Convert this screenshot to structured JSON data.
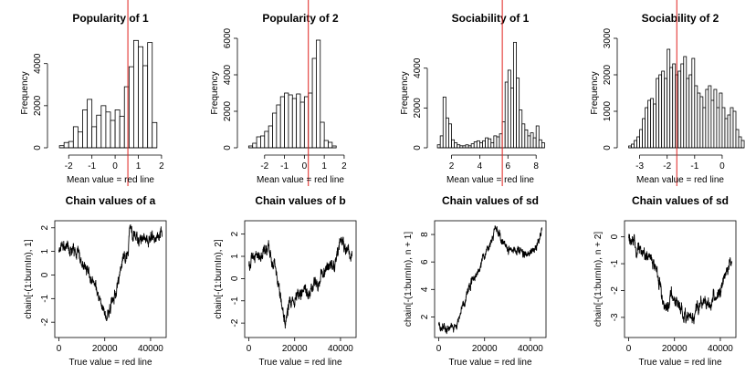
{
  "colors": {
    "reference_line": "#e0221e",
    "ink": "#000000",
    "bar_fill": "#ffffff"
  },
  "chart_data": [
    {
      "type": "histogram",
      "title": "Popularity of 1",
      "xlabel": "Mean value = red line",
      "ylabel": "Frequency",
      "bin_width": 0.2,
      "bin_start": -2.4,
      "counts": [
        100,
        250,
        300,
        1000,
        750,
        1800,
        2300,
        1000,
        1550,
        2000,
        1700,
        1300,
        1800,
        1500,
        2900,
        3850,
        5100,
        4800,
        3900,
        5000,
        1200
      ],
      "xlim": [
        -2.6,
        2.2
      ],
      "ylim": [
        0,
        5200
      ],
      "xticks": [
        -2,
        -1,
        0,
        1,
        2
      ],
      "yticks": [
        0,
        2000,
        4000
      ],
      "reference_line": 0.55
    },
    {
      "type": "histogram",
      "title": "Popularity of 2",
      "xlabel": "Mean value = red line",
      "ylabel": "Frequency",
      "bin_width": 0.2,
      "bin_start": -2.8,
      "counts": [
        100,
        250,
        600,
        650,
        900,
        1200,
        1900,
        2350,
        2800,
        3000,
        2900,
        2700,
        2950,
        2500,
        2800,
        3000,
        4900,
        5900,
        1400,
        400,
        300,
        100
      ],
      "xlim": [
        -3.0,
        2.6
      ],
      "ylim": [
        0,
        6000
      ],
      "xticks": [
        -2,
        -1,
        0,
        1,
        2
      ],
      "yticks": [
        0,
        2000,
        4000,
        6000
      ],
      "reference_line": 0.2
    },
    {
      "type": "histogram",
      "title": "Sociability of 1",
      "xlabel": "Mean value = red line",
      "ylabel": "Frequency",
      "bin_width": 0.2,
      "bin_start": 1.0,
      "counts": [
        150,
        600,
        2550,
        1500,
        1200,
        400,
        250,
        150,
        100,
        100,
        150,
        100,
        200,
        300,
        350,
        250,
        350,
        500,
        450,
        250,
        600,
        550,
        700,
        1300,
        3300,
        3900,
        3000,
        5300,
        3500,
        1900,
        1200,
        900,
        600,
        750,
        500,
        1100,
        400,
        250
      ],
      "xlim": [
        0.8,
        8.7
      ],
      "ylim": [
        0,
        5500
      ],
      "xticks": [
        2,
        4,
        6,
        8
      ],
      "yticks": [
        0,
        2000,
        4000
      ],
      "reference_line": 5.6
    },
    {
      "type": "histogram",
      "title": "Sociability of 2",
      "xlabel": "Mean value = red line",
      "ylabel": "Frequency",
      "bin_width": 0.1,
      "bin_start": -3.4,
      "counts": [
        50,
        100,
        200,
        300,
        500,
        800,
        1100,
        1300,
        1350,
        1200,
        1900,
        2000,
        2100,
        1900,
        2700,
        2200,
        2300,
        2000,
        2100,
        2300,
        2500,
        1900,
        2000,
        2450,
        1700,
        1500,
        1400,
        1100,
        1600,
        1700,
        1300,
        1600,
        1100,
        1500,
        1100,
        800,
        900,
        1100,
        1000,
        500,
        300,
        200
      ],
      "xlim": [
        -3.55,
        0.5
      ],
      "ylim": [
        0,
        3000
      ],
      "xticks": [
        -3,
        -2,
        -1,
        0
      ],
      "yticks": [
        0,
        1000,
        2000,
        3000
      ],
      "reference_line": -1.65
    },
    {
      "type": "line",
      "title": "Chain values of a",
      "xlabel": "True value = red line",
      "ylabel": "chain[-(1:burnIn), 1]",
      "x_range": [
        0,
        45000
      ],
      "xlim": [
        -1800,
        46800
      ],
      "ylim": [
        -2.65,
        2.3
      ],
      "xticks": [
        0,
        20000,
        40000
      ],
      "yticks": [
        -2,
        -1,
        0,
        1,
        2
      ],
      "anchors": [
        [
          0,
          1.1
        ],
        [
          3000,
          1.2
        ],
        [
          5000,
          1.0
        ],
        [
          8000,
          1.0
        ],
        [
          10000,
          0.5
        ],
        [
          13000,
          0.2
        ],
        [
          15000,
          -0.3
        ],
        [
          17000,
          -0.9
        ],
        [
          19000,
          -1.5
        ],
        [
          21000,
          -1.9
        ],
        [
          22500,
          -1.3
        ],
        [
          24000,
          -0.9
        ],
        [
          26000,
          -0.3
        ],
        [
          28000,
          0.6
        ],
        [
          30000,
          1.0
        ],
        [
          31000,
          1.9
        ],
        [
          34000,
          1.6
        ],
        [
          38000,
          1.5
        ],
        [
          42000,
          1.6
        ],
        [
          45000,
          1.8
        ]
      ],
      "noise": 0.22
    },
    {
      "type": "line",
      "title": "Chain values of b",
      "xlabel": "True value = red line",
      "ylabel": "chain[-(1:burnIn), 2]",
      "x_range": [
        0,
        45000
      ],
      "xlim": [
        -1800,
        46800
      ],
      "ylim": [
        -2.65,
        2.6
      ],
      "xticks": [
        0,
        20000,
        40000
      ],
      "yticks": [
        -2,
        -1,
        0,
        1,
        2
      ],
      "anchors": [
        [
          0,
          0.6
        ],
        [
          3000,
          1.0
        ],
        [
          6000,
          1.1
        ],
        [
          9000,
          1.2
        ],
        [
          11000,
          0.6
        ],
        [
          13000,
          -0.3
        ],
        [
          14500,
          -1.2
        ],
        [
          16000,
          -1.9
        ],
        [
          18000,
          -1.0
        ],
        [
          20000,
          -0.9
        ],
        [
          22000,
          -0.4
        ],
        [
          25000,
          -0.8
        ],
        [
          27000,
          -0.5
        ],
        [
          30000,
          -0.2
        ],
        [
          32000,
          0.3
        ],
        [
          35000,
          0.5
        ],
        [
          38000,
          0.9
        ],
        [
          40000,
          1.8
        ],
        [
          42000,
          1.3
        ],
        [
          45000,
          1.2
        ]
      ],
      "noise": 0.25
    },
    {
      "type": "line",
      "title": "Chain values of sd",
      "xlabel": "True value = red line",
      "ylabel": "chain[-(1:burnIn), n + 1]",
      "x_range": [
        0,
        45000
      ],
      "xlim": [
        -1800,
        46800
      ],
      "ylim": [
        0.5,
        9.0
      ],
      "xticks": [
        0,
        20000,
        40000
      ],
      "yticks": [
        2,
        4,
        6,
        8
      ],
      "anchors": [
        [
          0,
          1.3
        ],
        [
          4000,
          1.1
        ],
        [
          8000,
          1.4
        ],
        [
          10000,
          2.6
        ],
        [
          13000,
          4.2
        ],
        [
          16000,
          5.2
        ],
        [
          19000,
          6.1
        ],
        [
          22000,
          7.2
        ],
        [
          25000,
          8.3
        ],
        [
          28000,
          7.3
        ],
        [
          31000,
          6.7
        ],
        [
          34000,
          6.8
        ],
        [
          37000,
          6.5
        ],
        [
          40000,
          6.9
        ],
        [
          43000,
          7.4
        ],
        [
          45000,
          8.1
        ]
      ],
      "noise": 0.28
    },
    {
      "type": "line",
      "title": "Chain values of sd",
      "xlabel": "True value = red line",
      "ylabel": "chain[-(1:burnIn), n + 2]",
      "x_range": [
        0,
        45000
      ],
      "xlim": [
        -1800,
        46800
      ],
      "ylim": [
        -3.75,
        0.6
      ],
      "xticks": [
        0,
        20000,
        40000
      ],
      "yticks": [
        -3,
        -2,
        -1,
        0
      ],
      "anchors": [
        [
          0,
          0.0
        ],
        [
          3000,
          -0.4
        ],
        [
          6000,
          -0.6
        ],
        [
          9000,
          -0.8
        ],
        [
          12000,
          -1.1
        ],
        [
          14000,
          -1.9
        ],
        [
          16000,
          -2.6
        ],
        [
          19000,
          -2.3
        ],
        [
          22000,
          -2.5
        ],
        [
          25000,
          -2.9
        ],
        [
          27000,
          -3.1
        ],
        [
          30000,
          -2.6
        ],
        [
          33000,
          -2.4
        ],
        [
          36000,
          -2.6
        ],
        [
          39000,
          -2.2
        ],
        [
          42000,
          -1.4
        ],
        [
          45000,
          -0.8
        ]
      ],
      "noise": 0.22
    }
  ]
}
